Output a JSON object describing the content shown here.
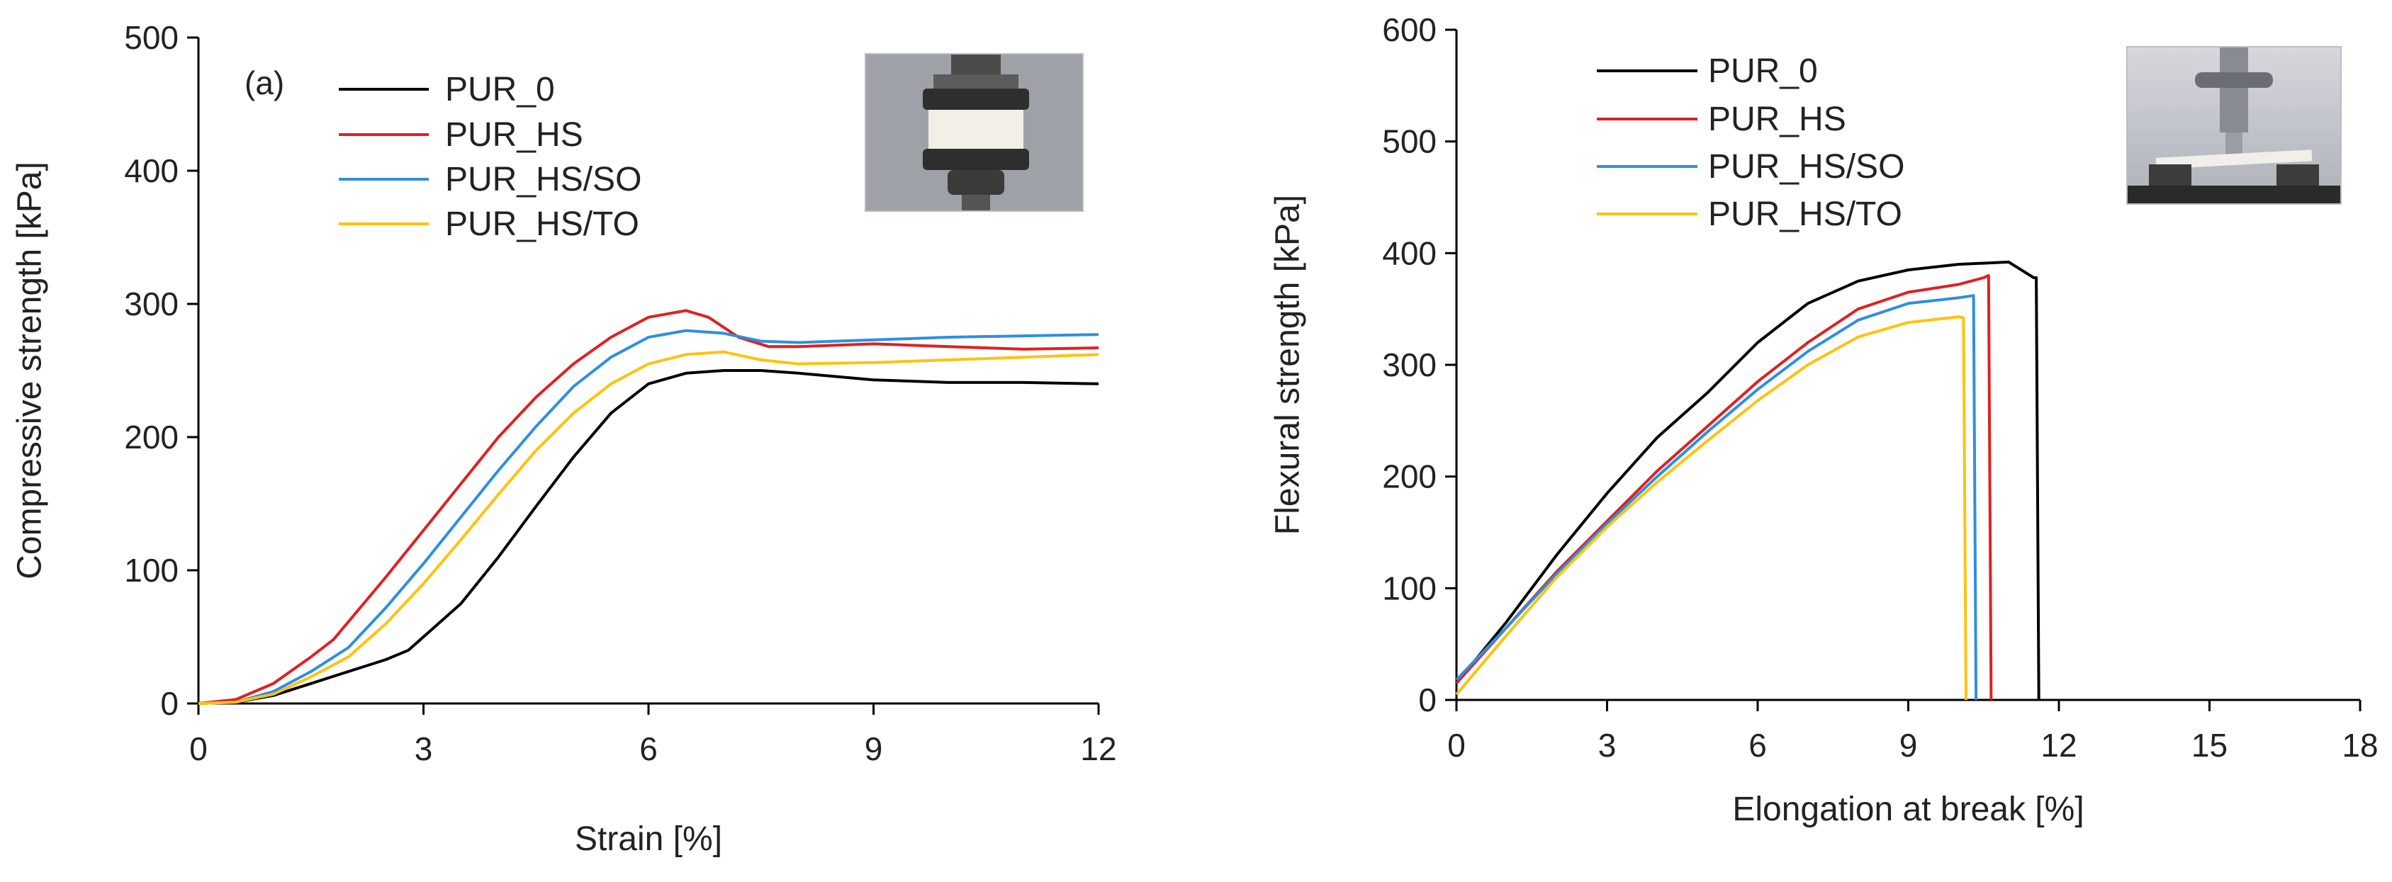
{
  "colors": {
    "PUR_0": "#000000",
    "PUR_HS": "#e02020",
    "PUR_HS/SO": "#2e8fe0",
    "PUR_HS/TO": "#ffc20e"
  },
  "chart_data": [
    {
      "type": "line",
      "panel_label": "(a)",
      "xlabel": "Strain [%]",
      "ylabel": "Compressive strength [kPa]",
      "xlim": [
        0,
        12
      ],
      "ylim": [
        0,
        500
      ],
      "xticks": [
        0,
        3,
        6,
        9,
        12
      ],
      "yticks": [
        0,
        100,
        200,
        300,
        400,
        500
      ],
      "x_tick_labels": [
        "0",
        "3",
        "6",
        "9",
        "12"
      ],
      "y_tick_labels": [
        "0",
        "100",
        "200",
        "300",
        "400",
        "500"
      ],
      "legend": [
        "PUR_0",
        "PUR_HS",
        "PUR_HS/SO",
        "PUR_HS/TO"
      ],
      "legend_position": "top-left",
      "grid": false,
      "inset_image": "compression test specimen photo",
      "series": [
        {
          "name": "PUR_0",
          "x": [
            0,
            0.5,
            1,
            1.5,
            2,
            2.5,
            2.8,
            3.5,
            4,
            4.5,
            5,
            5.5,
            6,
            6.5,
            7,
            7.5,
            8,
            9,
            10,
            11,
            12
          ],
          "y": [
            0,
            1,
            6,
            15,
            24,
            33,
            40,
            75,
            110,
            148,
            185,
            218,
            240,
            248,
            250,
            250,
            248,
            243,
            241,
            241,
            240
          ]
        },
        {
          "name": "PUR_HS",
          "x": [
            0,
            0.5,
            1,
            1.5,
            1.8,
            2.5,
            3,
            3.5,
            4,
            4.5,
            5,
            5.5,
            6,
            6.5,
            6.8,
            7.2,
            7.6,
            8,
            9,
            10,
            11,
            12
          ],
          "y": [
            0,
            3,
            15,
            35,
            48,
            95,
            130,
            165,
            200,
            230,
            255,
            275,
            290,
            295,
            290,
            275,
            268,
            268,
            270,
            268,
            266,
            267
          ]
        },
        {
          "name": "PUR_HS/SO",
          "x": [
            0,
            0.5,
            1,
            1.5,
            2,
            2.5,
            3,
            3.5,
            4,
            4.5,
            5,
            5.5,
            6,
            6.5,
            7,
            7.5,
            8,
            9,
            10,
            11,
            12
          ],
          "y": [
            0,
            1,
            9,
            24,
            42,
            72,
            105,
            140,
            175,
            208,
            238,
            260,
            275,
            280,
            278,
            272,
            271,
            273,
            275,
            276,
            277
          ]
        },
        {
          "name": "PUR_HS/TO",
          "x": [
            0,
            0.5,
            1,
            1.5,
            2,
            2.5,
            3,
            3.5,
            4,
            4.5,
            5,
            5.5,
            6,
            6.5,
            7,
            7.5,
            8,
            9,
            10,
            11,
            12
          ],
          "y": [
            0,
            1,
            7,
            20,
            35,
            60,
            90,
            123,
            157,
            190,
            218,
            240,
            255,
            262,
            264,
            258,
            255,
            256,
            258,
            260,
            262
          ]
        }
      ]
    },
    {
      "type": "line",
      "xlabel": "Elongation at break [%]",
      "ylabel": "Flexural strength [kPa]",
      "xlim": [
        0,
        18
      ],
      "ylim": [
        0,
        600
      ],
      "xticks": [
        0,
        3,
        6,
        9,
        12,
        15,
        18
      ],
      "yticks": [
        0,
        100,
        200,
        300,
        400,
        500,
        600
      ],
      "x_tick_labels": [
        "0",
        "3",
        "6",
        "9",
        "12",
        "15",
        "18"
      ],
      "y_tick_labels": [
        "0",
        "100",
        "200",
        "300",
        "400",
        "500",
        "600"
      ],
      "legend": [
        "PUR_0",
        "PUR_HS",
        "PUR_HS/SO",
        "PUR_HS/TO"
      ],
      "legend_position": "top-left",
      "grid": false,
      "inset_image": "three-point bending test photo",
      "series": [
        {
          "name": "PUR_0",
          "x": [
            0,
            1,
            2,
            3,
            4,
            5,
            6,
            7,
            8,
            9,
            10,
            11,
            11.5,
            11.55,
            11.6
          ],
          "y": [
            15,
            70,
            130,
            185,
            235,
            275,
            320,
            355,
            375,
            385,
            390,
            392,
            378,
            378,
            0
          ]
        },
        {
          "name": "PUR_HS",
          "x": [
            0,
            1,
            2,
            3,
            4,
            5,
            6,
            7,
            8,
            9,
            10,
            10.5,
            10.6,
            10.65
          ],
          "y": [
            15,
            65,
            115,
            160,
            205,
            245,
            285,
            320,
            350,
            365,
            372,
            378,
            380,
            0
          ]
        },
        {
          "name": "PUR_HS/SO",
          "x": [
            0,
            1,
            2,
            3,
            4,
            5,
            6,
            7,
            8,
            9,
            10,
            10.3,
            10.35
          ],
          "y": [
            18,
            65,
            113,
            158,
            200,
            240,
            278,
            312,
            340,
            355,
            360,
            362,
            0
          ]
        },
        {
          "name": "PUR_HS/TO",
          "x": [
            0,
            1,
            2,
            3,
            4,
            5,
            6,
            7,
            8,
            9,
            10,
            10.1,
            10.15
          ],
          "y": [
            5,
            58,
            110,
            155,
            195,
            232,
            268,
            300,
            325,
            338,
            343,
            342,
            0
          ]
        }
      ]
    }
  ]
}
